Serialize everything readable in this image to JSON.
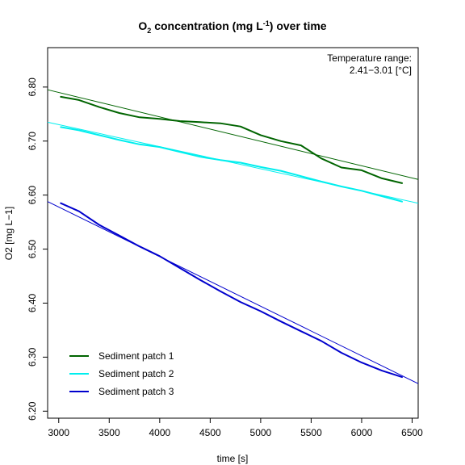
{
  "chart_data": {
    "type": "line",
    "title": {
      "pre": "O",
      "sub": "2",
      "mid": " concentration (mg L",
      "sup": "-1",
      "post": ") over time"
    },
    "xlabel": "time [s]",
    "ylabel": "O2 [mg L−1]",
    "xlim": [
      2890,
      6560
    ],
    "ylim": [
      6.187,
      6.873
    ],
    "x_ticks": [
      3000,
      3500,
      4000,
      4500,
      5000,
      5500,
      6000,
      6500
    ],
    "y_ticks": [
      6.2,
      6.3,
      6.4,
      6.5,
      6.6,
      6.7,
      6.8
    ],
    "grid": false,
    "legend_position": "bottom-left",
    "annotation": {
      "line1": "Temperature range:",
      "line2": "2.41−3.01 [°C]"
    },
    "series": [
      {
        "name": "Sediment patch 1",
        "color": "#006400",
        "x": [
          3020,
          3200,
          3400,
          3600,
          3800,
          4000,
          4200,
          4400,
          4600,
          4800,
          5000,
          5200,
          5400,
          5600,
          5800,
          6000,
          6200,
          6400
        ],
        "values": [
          6.782,
          6.776,
          6.763,
          6.752,
          6.744,
          6.741,
          6.737,
          6.735,
          6.733,
          6.727,
          6.711,
          6.7,
          6.692,
          6.668,
          6.651,
          6.646,
          6.631,
          6.622
        ],
        "fit": [
          [
            2890,
            6.795
          ],
          [
            6560,
            6.629
          ]
        ]
      },
      {
        "name": "Sediment patch 2",
        "color": "#00eeee",
        "x": [
          3020,
          3200,
          3400,
          3600,
          3800,
          4000,
          4200,
          4400,
          4600,
          4800,
          5000,
          5200,
          5400,
          5600,
          5800,
          6000,
          6200,
          6400
        ],
        "values": [
          6.726,
          6.72,
          6.711,
          6.702,
          6.694,
          6.689,
          6.68,
          6.671,
          6.665,
          6.66,
          6.652,
          6.645,
          6.635,
          6.625,
          6.616,
          6.608,
          6.598,
          6.588
        ],
        "fit": [
          [
            2890,
            6.735
          ],
          [
            6560,
            6.585
          ]
        ]
      },
      {
        "name": "Sediment patch 3",
        "color": "#0000cd",
        "x": [
          3020,
          3200,
          3400,
          3600,
          3800,
          4000,
          4200,
          4400,
          4600,
          4800,
          5000,
          5200,
          5400,
          5600,
          5800,
          6000,
          6200,
          6400
        ],
        "values": [
          6.585,
          6.57,
          6.545,
          6.525,
          6.505,
          6.487,
          6.465,
          6.443,
          6.422,
          6.402,
          6.385,
          6.366,
          6.348,
          6.33,
          6.308,
          6.29,
          6.275,
          6.263
        ],
        "fit": [
          [
            2890,
            6.588
          ],
          [
            6560,
            6.251
          ]
        ]
      }
    ]
  }
}
